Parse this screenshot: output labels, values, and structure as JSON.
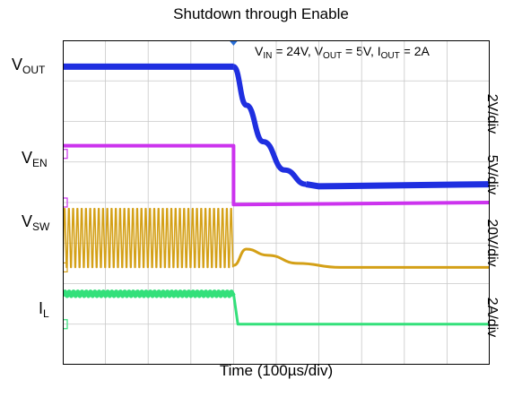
{
  "title": "Shutdown through Enable",
  "conditions": {
    "vin_label": "V",
    "vin_sub": "IN",
    "vin_value": " = 24V, ",
    "vout_label": "V",
    "vout_sub": "OUT",
    "vout_value": " = 5V, ",
    "iout_label": "I",
    "iout_sub": "OUT",
    "iout_value": " = 2A"
  },
  "channels": {
    "vout": {
      "main": "V",
      "sub": "OUT"
    },
    "ven": {
      "main": "V",
      "sub": "EN"
    },
    "vsw": {
      "main": "V",
      "sub": "SW"
    },
    "il": {
      "main": "I",
      "sub": "L"
    }
  },
  "scales": [
    "2V/div",
    "5V/div",
    "20V/div",
    "2A/div"
  ],
  "colors": {
    "vout": "#1f2fe0",
    "ven": "#cc33ee",
    "vsw": "#d4a017",
    "il": "#33e07a",
    "grid": "#c8c8c8"
  },
  "chart_data": {
    "type": "line",
    "title": "Shutdown through Enable",
    "xlabel": "Time (100µs/div)",
    "ylabel": "",
    "x_divisions": 10,
    "y_divisions": 8,
    "event_time_div": 4.0,
    "series": [
      {
        "key": "vout",
        "name": "VOUT",
        "points_div": [
          [
            0,
            7.35
          ],
          [
            4.0,
            7.35
          ],
          [
            4.3,
            6.4
          ],
          [
            4.7,
            5.5
          ],
          [
            5.2,
            4.8
          ],
          [
            5.7,
            4.45
          ],
          [
            6.0,
            4.4
          ],
          [
            10,
            4.45
          ]
        ]
      },
      {
        "key": "ven",
        "name": "VEN",
        "points_div": [
          [
            0,
            5.4
          ],
          [
            4.0,
            5.4
          ],
          [
            4.0,
            3.95
          ],
          [
            10,
            4.0
          ]
        ]
      },
      {
        "key": "vsw",
        "name": "VSW",
        "switching": {
          "from_div": 0,
          "to_div": 4.0,
          "low_div": 2.4,
          "high_div": 3.85,
          "period_div": 0.1
        },
        "points_div": [
          [
            4.0,
            2.45
          ],
          [
            4.3,
            2.85
          ],
          [
            4.8,
            2.7
          ],
          [
            5.5,
            2.5
          ],
          [
            6.5,
            2.4
          ],
          [
            10,
            2.4
          ]
        ]
      },
      {
        "key": "il",
        "name": "IL",
        "ripple": {
          "from_div": 0,
          "to_div": 4.0,
          "center_div": 1.75,
          "amplitude_div": 0.05
        },
        "points_div": [
          [
            4.0,
            1.75
          ],
          [
            4.1,
            1.0
          ],
          [
            10,
            1.0
          ]
        ]
      }
    ]
  }
}
